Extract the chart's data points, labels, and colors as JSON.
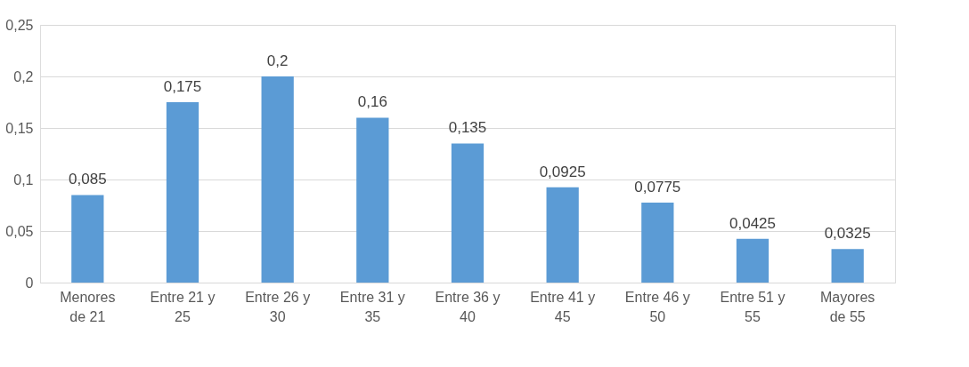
{
  "chart_data": {
    "type": "bar",
    "categories": [
      "Menores de 21",
      "Entre 21 y 25",
      "Entre 26 y 30",
      "Entre 31 y 35",
      "Entre 36 y 40",
      "Entre 41 y 45",
      "Entre 46 y 50",
      "Entre 51 y 55",
      "Mayores de 55"
    ],
    "values": [
      0.085,
      0.175,
      0.2,
      0.16,
      0.135,
      0.0925,
      0.0775,
      0.0425,
      0.0325
    ],
    "value_labels": [
      "0,085",
      "0,175",
      "0,2",
      "0,16",
      "0,135",
      "0,0925",
      "0,0775",
      "0,0425",
      "0,0325"
    ],
    "color": "#5b9bd5",
    "ylim": [
      0,
      0.25
    ],
    "yticks": [
      0,
      {
        "value": 0.05,
        "label": "0,05"
      },
      {
        "value": 0.1,
        "label": "0,1"
      },
      {
        "value": 0.15,
        "label": "0,15"
      },
      {
        "value": 0.2,
        "label": "0,2"
      },
      {
        "value": 0.25,
        "label": "0,25"
      }
    ],
    "grid": "y"
  }
}
